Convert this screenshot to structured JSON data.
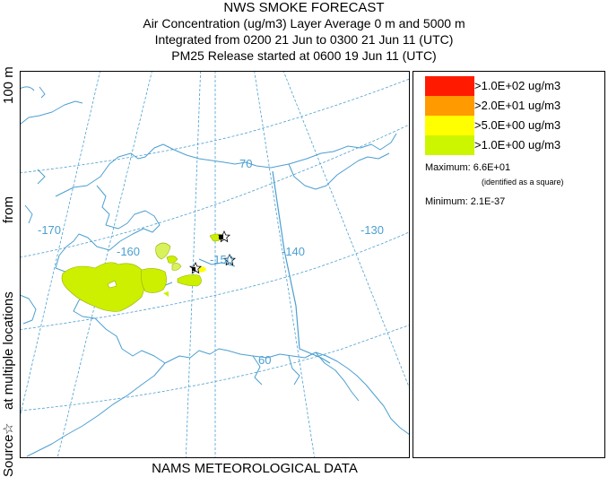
{
  "header": {
    "title": "NWS SMOKE FORECAST",
    "line1": "Air Concentration (ug/m3) Layer Average    0 m and  5000 m",
    "line2": "Integrated from 0200 21 Jun to 0300 21 Jun 11 (UTC)",
    "line3": "PM25 Release started at 0600 19 Jun 11 (UTC)"
  },
  "side_label": {
    "source": "Source",
    "star": "☆",
    "at_multiple": "at multiple locations",
    "from": "from",
    "height": "100 m"
  },
  "map": {
    "longitude_labels": [
      "-170",
      "-160",
      "-150",
      "-140",
      "-130"
    ],
    "latitude_labels": [
      "70",
      "60"
    ],
    "colors": {
      "coast": "#4b9fd0",
      "grid": "#4b9fd0",
      "plume_main": "#ccf000",
      "plume_light": "#d8f25c"
    }
  },
  "legend": {
    "entries": [
      {
        "label": ">1.0E+02 ug/m3",
        "color": "#ff1a00"
      },
      {
        "label": ">2.0E+01 ug/m3",
        "color": "#ff9a00"
      },
      {
        "label": ">5.0E+00 ug/m3",
        "color": "#ffff00"
      },
      {
        "label": ">1.0E+00 ug/m3",
        "color": "#ccf500"
      }
    ],
    "maximum": "Maximum: 6.6E+01",
    "maximum_note": "(identified as a square)",
    "minimum": "Minimum: 2.1E-37"
  },
  "footer": {
    "text": "NAMS METEOROLOGICAL DATA"
  }
}
